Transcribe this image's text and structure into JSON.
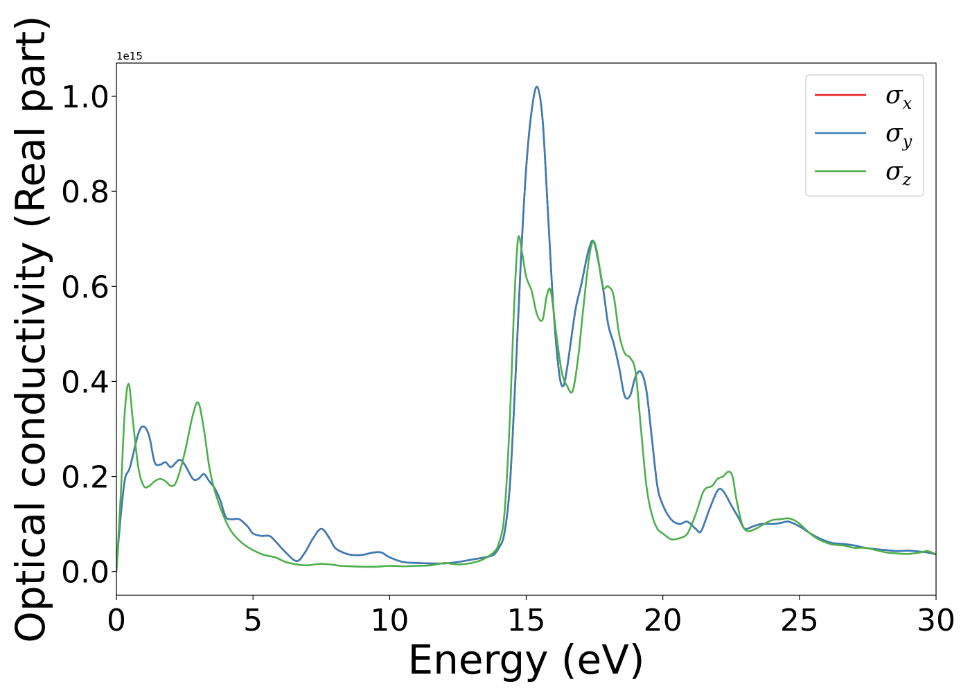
{
  "chart_data": {
    "type": "line",
    "title": "",
    "xlabel": "Energy (eV)",
    "ylabel": "Optical conductivity (Real part)",
    "y_offset_label": "1e15",
    "xlim": [
      0,
      30
    ],
    "ylim": [
      -0.05,
      1.07
    ],
    "x_ticks": [
      0,
      5,
      10,
      15,
      20,
      25,
      30
    ],
    "x_tick_labels": [
      "0",
      "5",
      "10",
      "15",
      "20",
      "25",
      "30"
    ],
    "y_ticks": [
      0.0,
      0.2,
      0.4,
      0.6,
      0.8,
      1.0
    ],
    "y_tick_labels": [
      "0.0",
      "0.2",
      "0.4",
      "0.6",
      "0.8",
      "1.0"
    ],
    "grid": false,
    "legend_position": "top-right",
    "series": [
      {
        "name": "σx",
        "symbol": "σ",
        "subscript": "x",
        "color": "#e41a1c",
        "x": [
          0,
          0.1,
          0.3,
          0.5,
          0.8,
          1.0,
          1.2,
          1.4,
          1.6,
          1.8,
          2.0,
          2.3,
          2.5,
          2.8,
          3.0,
          3.2,
          3.4,
          3.6,
          3.8,
          4.0,
          4.2,
          4.5,
          4.8,
          5.0,
          5.3,
          5.6,
          5.8,
          6.2,
          6.6,
          6.9,
          7.2,
          7.5,
          7.8,
          8.0,
          8.3,
          8.6,
          9.0,
          9.4,
          9.7,
          10.0,
          10.5,
          11.0,
          11.5,
          12.0,
          12.5,
          13.0,
          13.5,
          13.8,
          14.0,
          14.2,
          14.4,
          14.6,
          14.8,
          15.0,
          15.2,
          15.4,
          15.6,
          15.8,
          16.0,
          16.2,
          16.35,
          16.5,
          16.8,
          17.0,
          17.3,
          17.5,
          17.8,
          18.0,
          18.2,
          18.4,
          18.6,
          18.8,
          19.0,
          19.2,
          19.4,
          19.6,
          19.8,
          20.0,
          20.3,
          20.6,
          20.9,
          21.2,
          21.4,
          21.7,
          22.0,
          22.2,
          22.5,
          22.8,
          23.0,
          23.3,
          23.6,
          24.0,
          24.3,
          24.6,
          25.0,
          25.4,
          25.8,
          26.2,
          26.6,
          27.0,
          27.4,
          27.8,
          28.2,
          28.6,
          29.0,
          29.4,
          29.7,
          30.0
        ],
        "y": [
          0,
          0.08,
          0.19,
          0.22,
          0.29,
          0.305,
          0.285,
          0.23,
          0.225,
          0.23,
          0.22,
          0.235,
          0.225,
          0.195,
          0.195,
          0.205,
          0.19,
          0.175,
          0.15,
          0.115,
          0.11,
          0.11,
          0.095,
          0.08,
          0.075,
          0.075,
          0.065,
          0.04,
          0.022,
          0.04,
          0.07,
          0.09,
          0.07,
          0.05,
          0.04,
          0.035,
          0.035,
          0.04,
          0.04,
          0.03,
          0.02,
          0.018,
          0.017,
          0.017,
          0.02,
          0.025,
          0.03,
          0.035,
          0.05,
          0.08,
          0.18,
          0.4,
          0.65,
          0.85,
          0.97,
          1.02,
          0.95,
          0.75,
          0.55,
          0.42,
          0.39,
          0.43,
          0.55,
          0.6,
          0.68,
          0.69,
          0.6,
          0.52,
          0.48,
          0.43,
          0.37,
          0.37,
          0.41,
          0.42,
          0.38,
          0.28,
          0.18,
          0.14,
          0.11,
          0.1,
          0.105,
          0.09,
          0.085,
          0.13,
          0.17,
          0.17,
          0.14,
          0.11,
          0.09,
          0.095,
          0.1,
          0.1,
          0.102,
          0.105,
          0.095,
          0.08,
          0.068,
          0.06,
          0.058,
          0.055,
          0.05,
          0.047,
          0.045,
          0.043,
          0.044,
          0.042,
          0.04,
          0.036
        ]
      },
      {
        "name": "σy",
        "symbol": "σ",
        "subscript": "y",
        "color": "#377eb8",
        "x": [
          0,
          0.1,
          0.3,
          0.5,
          0.8,
          1.0,
          1.2,
          1.4,
          1.6,
          1.8,
          2.0,
          2.3,
          2.5,
          2.8,
          3.0,
          3.2,
          3.4,
          3.6,
          3.8,
          4.0,
          4.2,
          4.5,
          4.8,
          5.0,
          5.3,
          5.6,
          5.8,
          6.2,
          6.6,
          6.9,
          7.2,
          7.5,
          7.8,
          8.0,
          8.3,
          8.6,
          9.0,
          9.4,
          9.7,
          10.0,
          10.5,
          11.0,
          11.5,
          12.0,
          12.5,
          13.0,
          13.5,
          13.8,
          14.0,
          14.2,
          14.4,
          14.6,
          14.8,
          15.0,
          15.2,
          15.4,
          15.6,
          15.8,
          16.0,
          16.2,
          16.35,
          16.5,
          16.8,
          17.0,
          17.3,
          17.5,
          17.8,
          18.0,
          18.2,
          18.4,
          18.6,
          18.8,
          19.0,
          19.2,
          19.4,
          19.6,
          19.8,
          20.0,
          20.3,
          20.6,
          20.9,
          21.2,
          21.4,
          21.7,
          22.0,
          22.2,
          22.5,
          22.8,
          23.0,
          23.3,
          23.6,
          24.0,
          24.3,
          24.6,
          25.0,
          25.4,
          25.8,
          26.2,
          26.6,
          27.0,
          27.4,
          27.8,
          28.2,
          28.6,
          29.0,
          29.4,
          29.7,
          30.0
        ],
        "y": [
          0,
          0.08,
          0.19,
          0.22,
          0.29,
          0.305,
          0.285,
          0.23,
          0.225,
          0.23,
          0.22,
          0.235,
          0.225,
          0.195,
          0.195,
          0.205,
          0.19,
          0.175,
          0.15,
          0.115,
          0.11,
          0.11,
          0.095,
          0.08,
          0.075,
          0.075,
          0.065,
          0.04,
          0.022,
          0.04,
          0.07,
          0.09,
          0.07,
          0.05,
          0.04,
          0.035,
          0.035,
          0.04,
          0.04,
          0.03,
          0.02,
          0.018,
          0.017,
          0.017,
          0.02,
          0.025,
          0.03,
          0.035,
          0.05,
          0.08,
          0.18,
          0.4,
          0.65,
          0.85,
          0.97,
          1.02,
          0.95,
          0.75,
          0.55,
          0.42,
          0.39,
          0.43,
          0.55,
          0.6,
          0.68,
          0.69,
          0.6,
          0.52,
          0.48,
          0.43,
          0.37,
          0.37,
          0.41,
          0.42,
          0.38,
          0.28,
          0.18,
          0.14,
          0.11,
          0.1,
          0.105,
          0.09,
          0.085,
          0.13,
          0.17,
          0.17,
          0.14,
          0.11,
          0.09,
          0.095,
          0.1,
          0.1,
          0.102,
          0.105,
          0.095,
          0.08,
          0.068,
          0.06,
          0.058,
          0.055,
          0.05,
          0.047,
          0.045,
          0.043,
          0.044,
          0.042,
          0.04,
          0.036
        ]
      },
      {
        "name": "σz",
        "symbol": "σ",
        "subscript": "z",
        "color": "#4daf4a",
        "x": [
          0,
          0.15,
          0.3,
          0.45,
          0.6,
          0.8,
          1.0,
          1.2,
          1.4,
          1.6,
          1.8,
          2.0,
          2.2,
          2.5,
          2.8,
          3.0,
          3.2,
          3.4,
          3.6,
          3.9,
          4.2,
          4.6,
          5.0,
          5.4,
          5.8,
          6.2,
          6.6,
          7.0,
          7.4,
          7.8,
          8.2,
          8.6,
          9.0,
          9.5,
          10.0,
          10.5,
          11.0,
          11.5,
          12.0,
          12.3,
          12.6,
          13.0,
          13.4,
          13.8,
          14.0,
          14.2,
          14.4,
          14.55,
          14.7,
          14.85,
          15.0,
          15.2,
          15.4,
          15.6,
          15.75,
          15.9,
          16.1,
          16.3,
          16.5,
          16.7,
          16.9,
          17.1,
          17.3,
          17.45,
          17.6,
          17.8,
          18.0,
          18.2,
          18.4,
          18.6,
          18.8,
          19.0,
          19.2,
          19.4,
          19.6,
          19.8,
          20.0,
          20.3,
          20.6,
          20.9,
          21.2,
          21.5,
          21.8,
          22.0,
          22.2,
          22.4,
          22.55,
          22.7,
          22.9,
          23.1,
          23.4,
          23.7,
          24.0,
          24.3,
          24.6,
          24.9,
          25.2,
          25.5,
          25.8,
          26.2,
          26.6,
          27.0,
          27.4,
          27.8,
          28.2,
          28.6,
          29.0,
          29.4,
          29.7,
          30.0
        ],
        "y": [
          0,
          0.15,
          0.33,
          0.395,
          0.32,
          0.22,
          0.18,
          0.18,
          0.19,
          0.195,
          0.19,
          0.18,
          0.19,
          0.25,
          0.33,
          0.355,
          0.3,
          0.22,
          0.17,
          0.12,
          0.085,
          0.06,
          0.045,
          0.035,
          0.03,
          0.02,
          0.015,
          0.013,
          0.016,
          0.015,
          0.012,
          0.011,
          0.01,
          0.01,
          0.012,
          0.011,
          0.012,
          0.013,
          0.018,
          0.016,
          0.015,
          0.018,
          0.025,
          0.04,
          0.06,
          0.12,
          0.32,
          0.55,
          0.7,
          0.67,
          0.62,
          0.59,
          0.54,
          0.53,
          0.58,
          0.59,
          0.5,
          0.42,
          0.39,
          0.38,
          0.45,
          0.56,
          0.66,
          0.695,
          0.67,
          0.6,
          0.6,
          0.58,
          0.5,
          0.46,
          0.45,
          0.42,
          0.3,
          0.18,
          0.12,
          0.09,
          0.08,
          0.068,
          0.07,
          0.08,
          0.12,
          0.17,
          0.18,
          0.195,
          0.2,
          0.21,
          0.2,
          0.15,
          0.1,
          0.085,
          0.09,
          0.1,
          0.108,
          0.11,
          0.112,
          0.105,
          0.09,
          0.075,
          0.065,
          0.057,
          0.055,
          0.05,
          0.05,
          0.045,
          0.04,
          0.038,
          0.037,
          0.04,
          0.043,
          0.036
        ]
      }
    ]
  }
}
